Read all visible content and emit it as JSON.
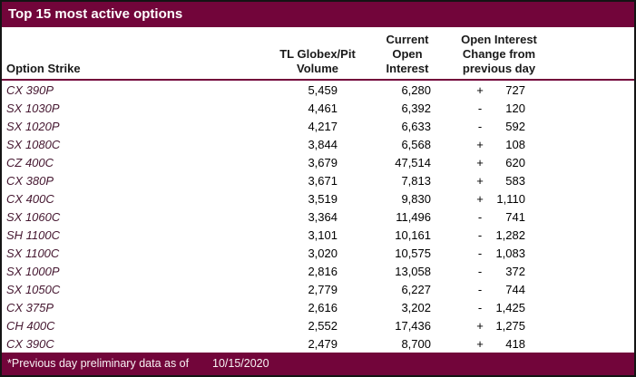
{
  "title": "Top 15 most active options",
  "columns": {
    "option_strike": "Option Strike",
    "volume": [
      "TL Globex/Pit",
      "Volume"
    ],
    "open_interest": [
      "Current",
      "Open",
      "Interest"
    ],
    "oi_change": [
      "Open Interest",
      "Change from",
      "previous day"
    ]
  },
  "rows": [
    {
      "strike": "CX 390P",
      "volume": "5,459",
      "open_interest": "6,280",
      "change_sign": "+",
      "change_value": "727"
    },
    {
      "strike": "SX 1030P",
      "volume": "4,461",
      "open_interest": "6,392",
      "change_sign": "-",
      "change_value": "120"
    },
    {
      "strike": "SX 1020P",
      "volume": "4,217",
      "open_interest": "6,633",
      "change_sign": "-",
      "change_value": "592"
    },
    {
      "strike": "SX 1080C",
      "volume": "3,844",
      "open_interest": "6,568",
      "change_sign": "+",
      "change_value": "108"
    },
    {
      "strike": "CZ 400C",
      "volume": "3,679",
      "open_interest": "47,514",
      "change_sign": "+",
      "change_value": "620"
    },
    {
      "strike": "CX 380P",
      "volume": "3,671",
      "open_interest": "7,813",
      "change_sign": "+",
      "change_value": "583"
    },
    {
      "strike": "CX 400C",
      "volume": "3,519",
      "open_interest": "9,830",
      "change_sign": "+",
      "change_value": "1,110"
    },
    {
      "strike": "SX 1060C",
      "volume": "3,364",
      "open_interest": "11,496",
      "change_sign": "-",
      "change_value": "741"
    },
    {
      "strike": "SH 1100C",
      "volume": "3,101",
      "open_interest": "10,161",
      "change_sign": "-",
      "change_value": "1,282"
    },
    {
      "strike": "SX 1100C",
      "volume": "3,020",
      "open_interest": "10,575",
      "change_sign": "-",
      "change_value": "1,083"
    },
    {
      "strike": "SX 1000P",
      "volume": "2,816",
      "open_interest": "13,058",
      "change_sign": "-",
      "change_value": "372"
    },
    {
      "strike": "SX 1050C",
      "volume": "2,779",
      "open_interest": "6,227",
      "change_sign": "-",
      "change_value": "744"
    },
    {
      "strike": "CX 375P",
      "volume": "2,616",
      "open_interest": "3,202",
      "change_sign": "-",
      "change_value": "1,425"
    },
    {
      "strike": "CH 400C",
      "volume": "2,552",
      "open_interest": "17,436",
      "change_sign": "+",
      "change_value": "1,275"
    },
    {
      "strike": "CX 390C",
      "volume": "2,479",
      "open_interest": "8,700",
      "change_sign": "+",
      "change_value": "418"
    }
  ],
  "footer": {
    "note": "*Previous day preliminary data as of",
    "date": "10/15/2020"
  },
  "colors": {
    "maroon_band": "#72053A",
    "strike_text": "#451730",
    "number_text": "#000000",
    "header_text": "#1a1a1a",
    "title_text": "#FFFFFF"
  }
}
